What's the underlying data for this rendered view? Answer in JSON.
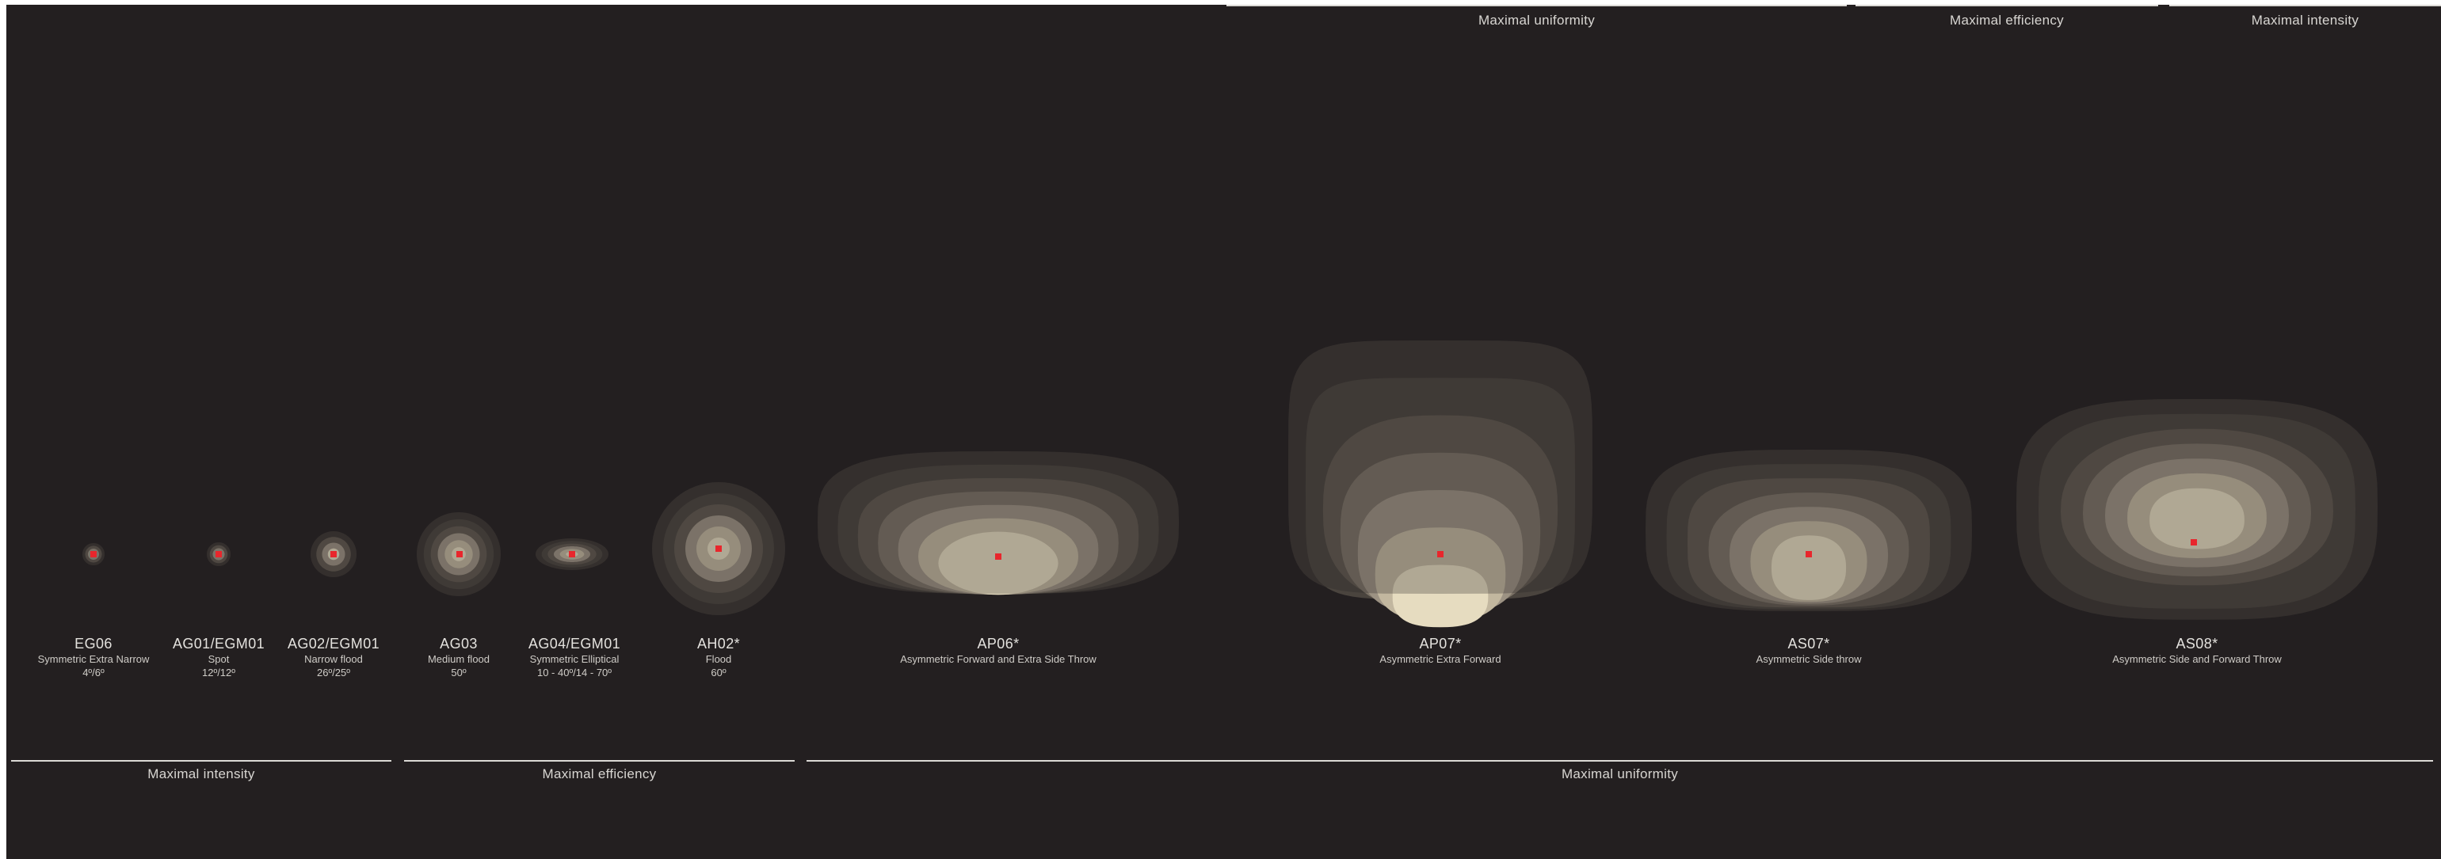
{
  "group_labels": {
    "top": [
      "Maximal uniformity",
      "Maximal efficiency",
      "Maximal intensity"
    ],
    "bottom": [
      "Maximal intensity",
      "Maximal efficiency",
      "Maximal uniformity"
    ]
  },
  "optics": [
    {
      "code": "EG06",
      "desc": "Symmetric Extra Narrow",
      "angle": "4º/6º"
    },
    {
      "code": "AG01/EGM01",
      "desc": "Spot",
      "angle": "12º/12º"
    },
    {
      "code": "AG02/EGM01",
      "desc": "Narrow flood",
      "angle": "26º/25º"
    },
    {
      "code": "AG03",
      "desc": "Medium flood",
      "angle": "50º"
    },
    {
      "code": "AG04/EGM01",
      "desc": "Symmetric Elliptical",
      "angle": "10 - 40º/14 - 70º"
    },
    {
      "code": "AH02*",
      "desc": "Flood",
      "angle": "60º"
    },
    {
      "code": "AP06*",
      "desc": "Asymmetric Forward and Extra Side Throw",
      "angle": ""
    },
    {
      "code": "AP07*",
      "desc": "Asymmetric Extra Forward",
      "angle": ""
    },
    {
      "code": "AS07*",
      "desc": "Asymmetric Side throw",
      "angle": ""
    },
    {
      "code": "AS08*",
      "desc": "Asymmetric Side and Forward Throw",
      "angle": ""
    }
  ],
  "colors": {
    "background": "#231f20",
    "rule": "#dcdad6",
    "beam_levels": [
      "#3a3532",
      "#4a443e",
      "#5f584f",
      "#7b7266",
      "#9c9283",
      "#c2b79f",
      "#e6dcc0"
    ],
    "source_marker": "#e8262c"
  }
}
